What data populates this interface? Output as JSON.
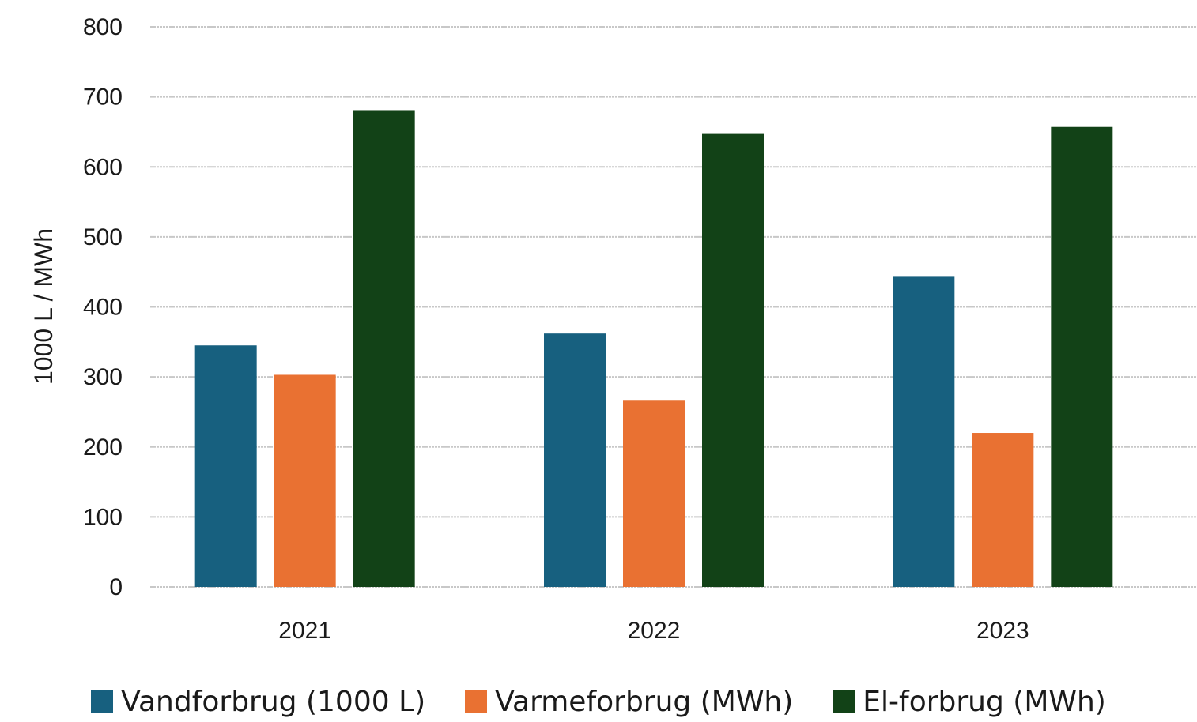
{
  "chart_data": {
    "type": "bar",
    "categories": [
      "2021",
      "2022",
      "2023"
    ],
    "series": [
      {
        "name": "Vandforbrug (1000 L)",
        "color": "#17607f",
        "values": [
          345,
          362,
          443
        ]
      },
      {
        "name": "Varmeforbrug (MWh)",
        "color": "#e97132",
        "values": [
          303,
          266,
          220
        ]
      },
      {
        "name": "El-forbrug (MWh)",
        "color": "#124217",
        "values": [
          681,
          647,
          657
        ]
      }
    ],
    "ylabel": "1000 L / MWh",
    "xlabel": "",
    "ylim": [
      0,
      800
    ],
    "yticks": [
      "0",
      "100",
      "200",
      "300",
      "400",
      "500",
      "600",
      "700",
      "800"
    ],
    "grid": true,
    "legend_position": "bottom"
  }
}
